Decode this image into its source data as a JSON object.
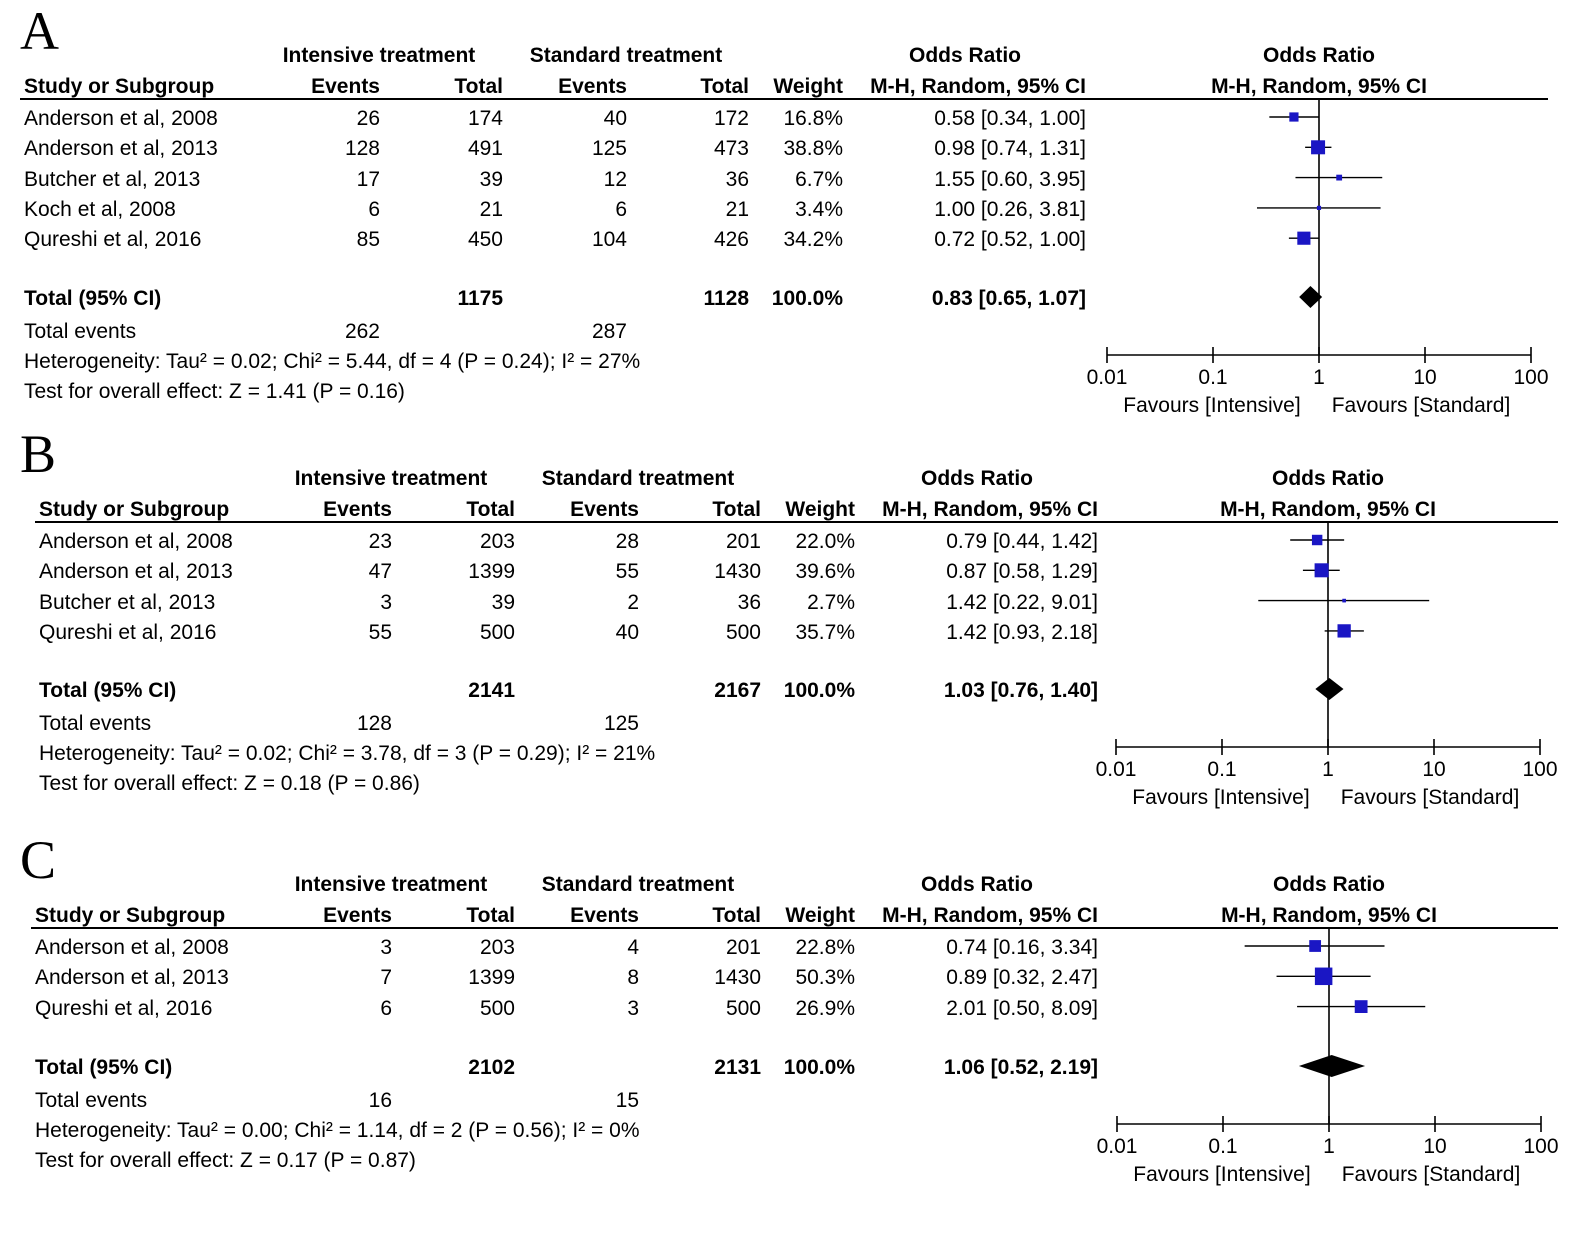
{
  "chart_data": [
    {
      "type": "forest",
      "panel_label": "A",
      "group_headers": [
        "Intensive treatment",
        "Standard treatment"
      ],
      "columns": [
        "Study or Subgroup",
        "Events",
        "Total",
        "Events",
        "Total",
        "Weight",
        "M-H, Random, 95% CI"
      ],
      "or_header": "Odds Ratio",
      "plot_header": "Odds Ratio",
      "plot_subheader": "M-H, Random, 95% CI",
      "studies": [
        {
          "name": "Anderson et al, 2008",
          "ie": "26",
          "it": "174",
          "se": "40",
          "st": "172",
          "w": "16.8%",
          "ci_text": "0.58 [0.34, 1.00]",
          "or": 0.58,
          "lo": 0.34,
          "hi": 1.0
        },
        {
          "name": "Anderson et al, 2013",
          "ie": "128",
          "it": "491",
          "se": "125",
          "st": "473",
          "w": "38.8%",
          "ci_text": "0.98 [0.74, 1.31]",
          "or": 0.98,
          "lo": 0.74,
          "hi": 1.31
        },
        {
          "name": "Butcher et al, 2013",
          "ie": "17",
          "it": "39",
          "se": "12",
          "st": "36",
          "w": "6.7%",
          "ci_text": "1.55 [0.60, 3.95]",
          "or": 1.55,
          "lo": 0.6,
          "hi": 3.95
        },
        {
          "name": "Koch et al, 2008",
          "ie": "6",
          "it": "21",
          "se": "6",
          "st": "21",
          "w": "3.4%",
          "ci_text": "1.00 [0.26, 3.81]",
          "or": 1.0,
          "lo": 0.26,
          "hi": 3.81
        },
        {
          "name": "Qureshi et al, 2016",
          "ie": "85",
          "it": "450",
          "se": "104",
          "st": "426",
          "w": "34.2%",
          "ci_text": "0.72 [0.52, 1.00]",
          "or": 0.72,
          "lo": 0.52,
          "hi": 1.0
        }
      ],
      "total": {
        "label": "Total (95% CI)",
        "it": "1175",
        "st": "1128",
        "w": "100.0%",
        "ci_text": "0.83 [0.65, 1.07]",
        "or": 0.83,
        "lo": 0.65,
        "hi": 1.07
      },
      "total_events": {
        "label": "Total events",
        "ie": "262",
        "se": "287"
      },
      "heterogeneity": "Heterogeneity: Tau² = 0.02; Chi² = 5.44, df = 4 (P = 0.24); I² = 27%",
      "overall_effect": "Test for overall effect: Z = 1.41 (P = 0.16)",
      "axis": {
        "scale": "log",
        "min": 0.01,
        "max": 100,
        "ticks": [
          "0.01",
          "0.1",
          "1",
          "10",
          "100"
        ],
        "left_label": "Favours [Intensive]",
        "right_label": "Favours [Standard]"
      }
    },
    {
      "type": "forest",
      "panel_label": "B",
      "group_headers": [
        "Intensive treatment",
        "Standard treatment"
      ],
      "columns": [
        "Study or Subgroup",
        "Events",
        "Total",
        "Events",
        "Total",
        "Weight",
        "M-H, Random, 95% CI"
      ],
      "or_header": "Odds Ratio",
      "plot_header": "Odds Ratio",
      "plot_subheader": "M-H, Random, 95% CI",
      "studies": [
        {
          "name": "Anderson et al, 2008",
          "ie": "23",
          "it": "203",
          "se": "28",
          "st": "201",
          "w": "22.0%",
          "ci_text": "0.79 [0.44, 1.42]",
          "or": 0.79,
          "lo": 0.44,
          "hi": 1.42
        },
        {
          "name": "Anderson et al, 2013",
          "ie": "47",
          "it": "1399",
          "se": "55",
          "st": "1430",
          "w": "39.6%",
          "ci_text": "0.87 [0.58, 1.29]",
          "or": 0.87,
          "lo": 0.58,
          "hi": 1.29
        },
        {
          "name": "Butcher et al, 2013",
          "ie": "3",
          "it": "39",
          "se": "2",
          "st": "36",
          "w": "2.7%",
          "ci_text": "1.42 [0.22, 9.01]",
          "or": 1.42,
          "lo": 0.22,
          "hi": 9.01
        },
        {
          "name": "Qureshi et al, 2016",
          "ie": "55",
          "it": "500",
          "se": "40",
          "st": "500",
          "w": "35.7%",
          "ci_text": "1.42 [0.93, 2.18]",
          "or": 1.42,
          "lo": 0.93,
          "hi": 2.18
        }
      ],
      "total": {
        "label": "Total (95% CI)",
        "it": "2141",
        "st": "2167",
        "w": "100.0%",
        "ci_text": "1.03 [0.76, 1.40]",
        "or": 1.03,
        "lo": 0.76,
        "hi": 1.4
      },
      "total_events": {
        "label": "Total events",
        "ie": "128",
        "se": "125"
      },
      "heterogeneity": "Heterogeneity: Tau² = 0.02; Chi² = 3.78, df = 3 (P = 0.29); I² = 21%",
      "overall_effect": "Test for overall effect: Z = 0.18 (P = 0.86)",
      "axis": {
        "scale": "log",
        "min": 0.01,
        "max": 100,
        "ticks": [
          "0.01",
          "0.1",
          "1",
          "10",
          "100"
        ],
        "left_label": "Favours [Intensive]",
        "right_label": "Favours [Standard]"
      }
    },
    {
      "type": "forest",
      "panel_label": "C",
      "group_headers": [
        "Intensive treatment",
        "Standard treatment"
      ],
      "columns": [
        "Study or Subgroup",
        "Events",
        "Total",
        "Events",
        "Total",
        "Weight",
        "M-H, Random, 95% CI"
      ],
      "or_header": "Odds Ratio",
      "plot_header": "Odds Ratio",
      "plot_subheader": "M-H, Random, 95% CI",
      "studies": [
        {
          "name": "Anderson et al, 2008",
          "ie": "3",
          "it": "203",
          "se": "4",
          "st": "201",
          "w": "22.8%",
          "ci_text": "0.74 [0.16, 3.34]",
          "or": 0.74,
          "lo": 0.16,
          "hi": 3.34
        },
        {
          "name": "Anderson et al, 2013",
          "ie": "7",
          "it": "1399",
          "se": "8",
          "st": "1430",
          "w": "50.3%",
          "ci_text": "0.89 [0.32, 2.47]",
          "or": 0.89,
          "lo": 0.32,
          "hi": 2.47
        },
        {
          "name": "Qureshi et al, 2016",
          "ie": "6",
          "it": "500",
          "se": "3",
          "st": "500",
          "w": "26.9%",
          "ci_text": "2.01 [0.50, 8.09]",
          "or": 2.01,
          "lo": 0.5,
          "hi": 8.09
        }
      ],
      "total": {
        "label": "Total (95% CI)",
        "it": "2102",
        "st": "2131",
        "w": "100.0%",
        "ci_text": "1.06 [0.52, 2.19]",
        "or": 1.06,
        "lo": 0.52,
        "hi": 2.19
      },
      "total_events": {
        "label": "Total events",
        "ie": "16",
        "se": "15"
      },
      "heterogeneity": "Heterogeneity: Tau² = 0.00; Chi² = 1.14, df = 2 (P = 0.56); I² = 0%",
      "overall_effect": "Test for overall effect: Z = 0.17 (P = 0.87)",
      "axis": {
        "scale": "log",
        "min": 0.01,
        "max": 100,
        "ticks": [
          "0.01",
          "0.1",
          "1",
          "10",
          "100"
        ],
        "left_label": "Favours [Intensive]",
        "right_label": "Favours [Standard]"
      }
    }
  ],
  "colors": {
    "marker": "#1a16c4",
    "text": "#000000",
    "background": "#ffffff"
  }
}
